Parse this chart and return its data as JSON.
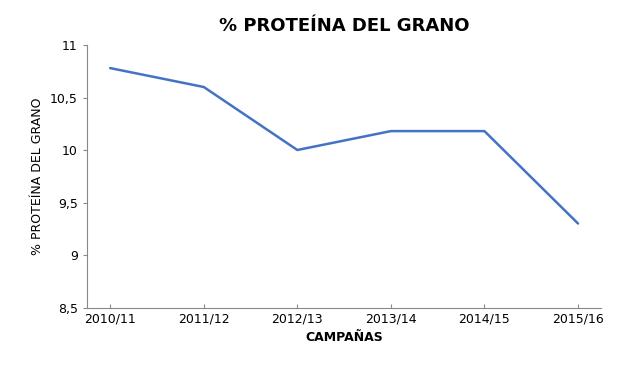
{
  "title": "% PROTEÍNA DEL GRANO",
  "xlabel": "CAMPAÑAS",
  "ylabel": "% PROTEÍNA DEL GRANO",
  "categories": [
    "2010/11",
    "2011/12",
    "2012/13",
    "2013/14",
    "2014/15",
    "2015/16"
  ],
  "values": [
    10.78,
    10.6,
    10.0,
    10.18,
    10.18,
    9.3
  ],
  "line_color": "#4472C4",
  "ylim": [
    8.5,
    11.0
  ],
  "yticks": [
    8.5,
    9.0,
    9.5,
    10.0,
    10.5,
    11.0
  ],
  "ytick_labels": [
    "8,5",
    "9",
    "9,5",
    "10",
    "10,5",
    "11"
  ],
  "background_color": "#ffffff",
  "title_fontsize": 13,
  "label_fontsize": 9,
  "tick_fontsize": 9
}
